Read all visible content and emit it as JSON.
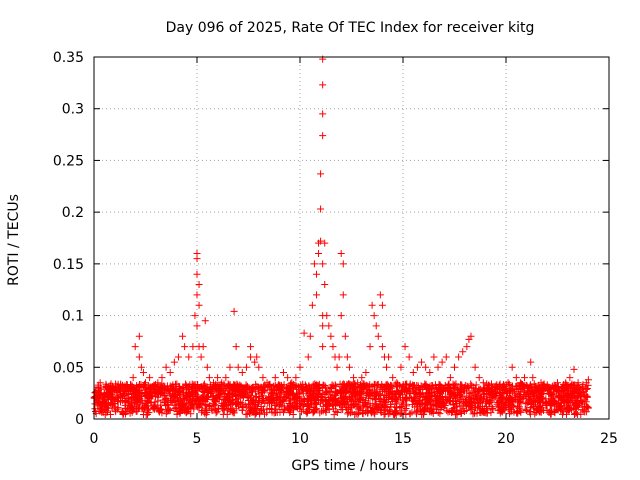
{
  "chart_data": {
    "type": "scatter",
    "title": "Day 096 of 2025, Rate Of TEC Index for receiver kitg",
    "xlabel": "GPS time / hours",
    "ylabel": "ROTI / TECUs",
    "xlim": [
      0,
      25
    ],
    "ylim": [
      0,
      0.35
    ],
    "x_ticks": [
      0,
      5,
      10,
      15,
      20,
      25
    ],
    "x_tick_labels": [
      "0",
      "5",
      "10",
      "15",
      "20",
      "25"
    ],
    "y_ticks": [
      0,
      0.05,
      0.1,
      0.15,
      0.2,
      0.25,
      0.3,
      0.35
    ],
    "y_tick_labels": [
      "0",
      "0.05",
      "0.1",
      "0.15",
      "0.2",
      "0.25",
      "0.3",
      "0.35"
    ],
    "grid": true,
    "marker": "plus",
    "marker_color": "#ff0000",
    "series": [
      {
        "name": "ROTI",
        "x": [
          0.1,
          0.2,
          0.3,
          0.5,
          0.7,
          0.9,
          1.1,
          1.3,
          1.5,
          1.7,
          1.9,
          2.0,
          2.1,
          2.2,
          2.2,
          2.3,
          2.4,
          2.5,
          2.7,
          2.9,
          3.1,
          3.3,
          3.5,
          3.7,
          3.9,
          4.1,
          4.3,
          4.4,
          4.6,
          4.8,
          4.9,
          5.0,
          5.0,
          5.0,
          5.0,
          5.0,
          5.1,
          5.1,
          5.1,
          5.2,
          5.3,
          5.4,
          5.5,
          5.6,
          5.8,
          6.0,
          6.2,
          6.4,
          6.6,
          6.8,
          6.9,
          7.0,
          7.2,
          7.4,
          7.6,
          7.6,
          7.8,
          7.9,
          8.0,
          8.2,
          8.4,
          8.6,
          8.8,
          9.0,
          9.2,
          9.4,
          9.6,
          9.8,
          10.0,
          10.2,
          10.4,
          10.5,
          10.6,
          10.7,
          10.8,
          10.8,
          10.9,
          10.9,
          11.0,
          11.0,
          11.0,
          11.1,
          11.1,
          11.1,
          11.1,
          11.1,
          11.1,
          11.1,
          11.1,
          11.2,
          11.2,
          11.3,
          11.4,
          11.5,
          11.6,
          11.7,
          11.8,
          11.9,
          12.0,
          12.0,
          12.1,
          12.1,
          12.2,
          12.3,
          12.4,
          12.6,
          12.8,
          13.0,
          13.2,
          13.4,
          13.5,
          13.6,
          13.7,
          13.8,
          13.9,
          14.0,
          14.0,
          14.1,
          14.2,
          14.3,
          14.5,
          14.7,
          14.9,
          15.1,
          15.3,
          15.5,
          15.7,
          15.9,
          16.1,
          16.3,
          16.5,
          16.7,
          16.9,
          17.1,
          17.3,
          17.5,
          17.7,
          17.9,
          18.1,
          18.2,
          18.3,
          18.5,
          18.7,
          18.9,
          19.1,
          19.3,
          19.5,
          19.7,
          19.9,
          20.1,
          20.3,
          20.5,
          20.7,
          20.9,
          21.1,
          21.2,
          21.3,
          21.5,
          21.7,
          21.9,
          22.1,
          22.3,
          22.5,
          22.7,
          22.9,
          23.1,
          23.3,
          23.5,
          23.7,
          23.9,
          24.0
        ],
        "y": [
          0.02,
          0.03,
          0.035,
          0.025,
          0.03,
          0.02,
          0.028,
          0.025,
          0.032,
          0.03,
          0.04,
          0.07,
          0.03,
          0.08,
          0.06,
          0.05,
          0.045,
          0.035,
          0.04,
          0.03,
          0.035,
          0.04,
          0.05,
          0.045,
          0.055,
          0.06,
          0.08,
          0.07,
          0.06,
          0.07,
          0.1,
          0.12,
          0.14,
          0.155,
          0.16,
          0.09,
          0.13,
          0.11,
          0.07,
          0.06,
          0.07,
          0.095,
          0.05,
          0.04,
          0.035,
          0.04,
          0.035,
          0.04,
          0.05,
          0.104,
          0.07,
          0.05,
          0.045,
          0.05,
          0.07,
          0.06,
          0.055,
          0.06,
          0.05,
          0.04,
          0.035,
          0.03,
          0.04,
          0.03,
          0.045,
          0.04,
          0.035,
          0.04,
          0.05,
          0.083,
          0.06,
          0.08,
          0.11,
          0.15,
          0.14,
          0.12,
          0.16,
          0.17,
          0.172,
          0.203,
          0.237,
          0.274,
          0.295,
          0.323,
          0.348,
          0.15,
          0.1,
          0.07,
          0.09,
          0.17,
          0.13,
          0.1,
          0.09,
          0.08,
          0.07,
          0.06,
          0.05,
          0.06,
          0.1,
          0.16,
          0.15,
          0.12,
          0.08,
          0.06,
          0.05,
          0.04,
          0.035,
          0.04,
          0.045,
          0.07,
          0.11,
          0.1,
          0.09,
          0.08,
          0.12,
          0.11,
          0.07,
          0.06,
          0.05,
          0.06,
          0.04,
          0.035,
          0.05,
          0.07,
          0.06,
          0.045,
          0.05,
          0.055,
          0.05,
          0.045,
          0.06,
          0.05,
          0.055,
          0.06,
          0.04,
          0.05,
          0.06,
          0.065,
          0.07,
          0.077,
          0.08,
          0.05,
          0.04,
          0.035,
          0.03,
          0.025,
          0.03,
          0.025,
          0.03,
          0.035,
          0.05,
          0.04,
          0.035,
          0.04,
          0.03,
          0.055,
          0.04,
          0.03,
          0.035,
          0.03,
          0.025,
          0.03,
          0.035,
          0.03,
          0.035,
          0.04,
          0.048,
          0.035,
          0.03,
          0.035,
          0.038
        ]
      }
    ],
    "baseline_band": {
      "x_start": 0,
      "x_end": 24,
      "y_min": 0.0,
      "y_max": 0.03,
      "density": "dense"
    }
  }
}
